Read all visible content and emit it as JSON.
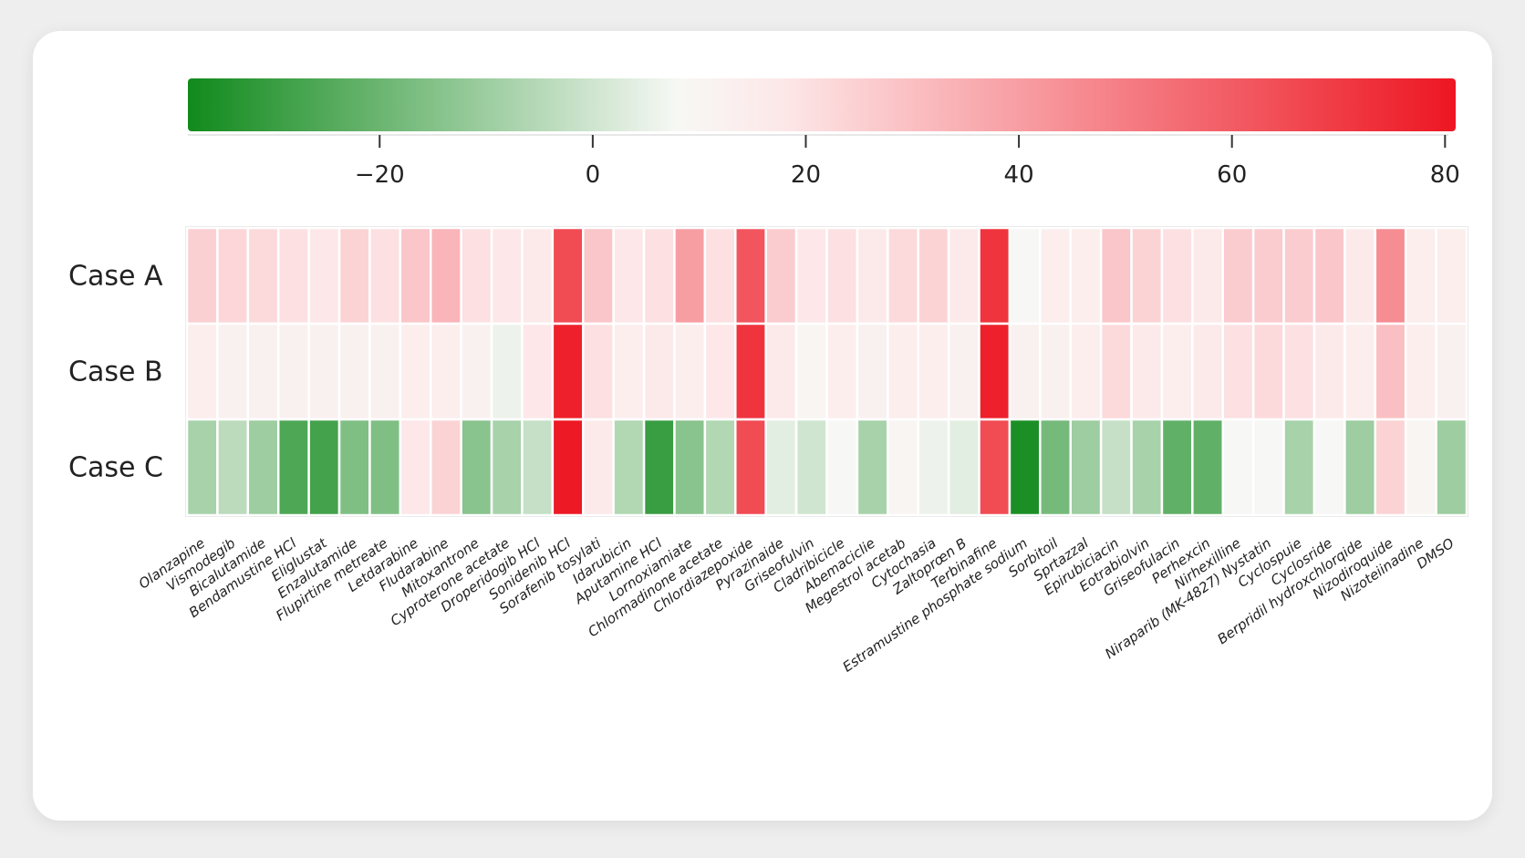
{
  "chart_data": {
    "type": "heatmap",
    "rows": [
      "Case A",
      "Case B",
      "Case C"
    ],
    "columns": [
      "Olanzapine",
      "Vismodegib",
      "Bicalutamide",
      "Bendamustine HCl",
      "Eliglustat",
      "Enzalutamide",
      "Flupirtine metreate",
      "Letdarabine",
      "Fludarabine",
      "Mitoxantrone",
      "Cyproterone acetate",
      "Droperidogib HCl",
      "Sonidenib HCl",
      "Sorafenib tosylati",
      "Idarubicin",
      "Aputamine HCl",
      "Lornoxiamiate",
      "Chlormadinone acetate",
      "Chlordiazepoxide",
      "Pyrazinaide",
      "Griseofulvin",
      "Cladribicicle",
      "Abemaciclie",
      "Megestrol acetab",
      "Cytochasia",
      "Zaltoprœn B",
      "Terbinafine",
      "Estramustine phosphate sodium",
      "Sorbitoil",
      "Sprtazzal",
      "Epirubiciacin",
      "Eotrabiolvin",
      "Griseofulacin",
      "Perhexcin",
      "Nirhexilline",
      "Niraparib (MK-4827) Nystatin",
      "Cyclospuie",
      "Cyclosride",
      "Berpridil hydroxchlorqide",
      "Nizodiroquide",
      "Nizoteiinadine",
      "DMSO"
    ],
    "values": [
      [
        25,
        23,
        22,
        20,
        18,
        24,
        20,
        28,
        33,
        20,
        18,
        16,
        65,
        28,
        18,
        20,
        40,
        20,
        62,
        26,
        18,
        20,
        16,
        22,
        24,
        16,
        72,
        8,
        14,
        14,
        28,
        24,
        20,
        16,
        26,
        26,
        26,
        28,
        16,
        45,
        14,
        14
      ],
      [
        14,
        12,
        12,
        12,
        12,
        12,
        12,
        14,
        14,
        12,
        6,
        18,
        78,
        20,
        14,
        16,
        14,
        18,
        72,
        16,
        10,
        14,
        12,
        14,
        14,
        12,
        78,
        12,
        12,
        14,
        22,
        16,
        14,
        16,
        20,
        22,
        20,
        16,
        14,
        30,
        14,
        12
      ],
      [
        -8,
        -4,
        -10,
        -26,
        -28,
        -16,
        -16,
        18,
        24,
        -14,
        -8,
        -2,
        80,
        16,
        -6,
        -30,
        -14,
        -6,
        65,
        4,
        0,
        8,
        -8,
        10,
        6,
        4,
        65,
        -36,
        -18,
        -10,
        -2,
        -8,
        -22,
        -22,
        8,
        8,
        -8,
        8,
        -10,
        24,
        10,
        -10
      ]
    ],
    "colorbar": {
      "min": -38,
      "max": 81,
      "ticks": [
        "−20",
        "0",
        "20",
        "40",
        "60",
        "80"
      ],
      "tick_values": [
        -20,
        0,
        20,
        40,
        60,
        80
      ],
      "colors": [
        "#118a1c",
        "#f7f8f5",
        "#fde7e8",
        "#ed1622"
      ],
      "stops": [
        -38,
        8,
        18,
        81
      ]
    },
    "title": "",
    "xlabel": "",
    "ylabel": ""
  }
}
